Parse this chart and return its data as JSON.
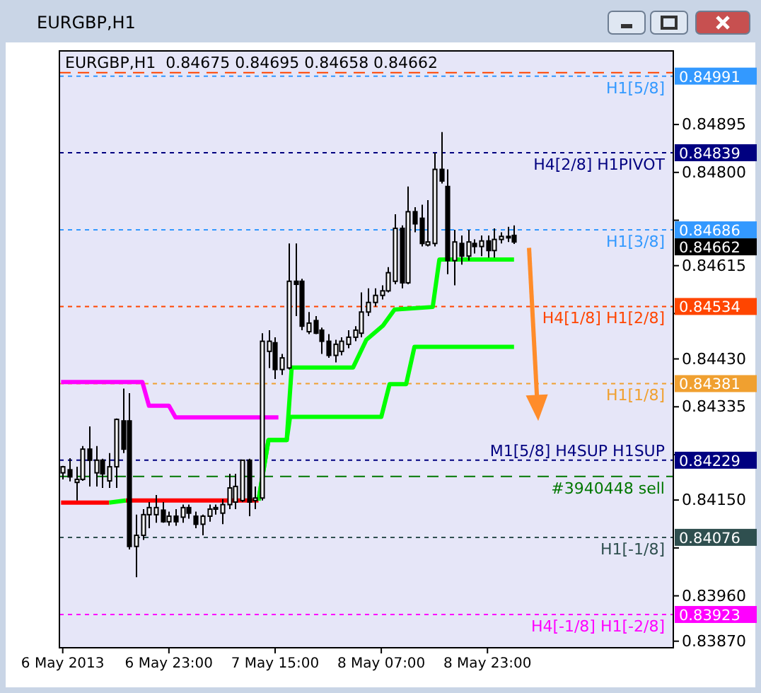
{
  "chart_data": {
    "type": "candlestick",
    "title": "EURGBP,H1",
    "subtitle": "EURGBP,H1  0.84675 0.84695 0.84658 0.84662",
    "x": [
      "2013-05-06T07:00",
      "2013-05-06T08:00",
      "2013-05-06T09:00",
      "2013-05-06T10:00",
      "2013-05-06T11:00",
      "2013-05-06T12:00",
      "2013-05-06T13:00",
      "2013-05-06T14:00",
      "2013-05-06T15:00",
      "2013-05-06T16:00",
      "2013-05-06T17:00",
      "2013-05-06T18:00",
      "2013-05-06T19:00",
      "2013-05-06T20:00",
      "2013-05-06T21:00",
      "2013-05-06T22:00",
      "2013-05-06T23:00",
      "2013-05-07T00:00",
      "2013-05-07T01:00",
      "2013-05-07T02:00",
      "2013-05-07T03:00",
      "2013-05-07T04:00",
      "2013-05-07T05:00",
      "2013-05-07T06:00",
      "2013-05-07T07:00",
      "2013-05-07T08:00",
      "2013-05-07T09:00",
      "2013-05-07T10:00",
      "2013-05-07T11:00",
      "2013-05-07T12:00",
      "2013-05-07T13:00",
      "2013-05-07T14:00",
      "2013-05-07T15:00",
      "2013-05-07T16:00",
      "2013-05-07T17:00",
      "2013-05-07T18:00",
      "2013-05-07T19:00",
      "2013-05-07T20:00",
      "2013-05-07T21:00",
      "2013-05-07T22:00",
      "2013-05-07T23:00",
      "2013-05-08T00:00",
      "2013-05-08T01:00",
      "2013-05-08T02:00",
      "2013-05-08T03:00",
      "2013-05-08T04:00",
      "2013-05-08T05:00",
      "2013-05-08T06:00",
      "2013-05-08T07:00",
      "2013-05-08T08:00",
      "2013-05-08T09:00",
      "2013-05-08T10:00",
      "2013-05-08T11:00",
      "2013-05-08T12:00",
      "2013-05-08T13:00",
      "2013-05-08T14:00",
      "2013-05-08T15:00",
      "2013-05-08T16:00",
      "2013-05-08T17:00",
      "2013-05-08T18:00",
      "2013-05-08T19:00",
      "2013-05-08T20:00",
      "2013-05-08T21:00",
      "2013-05-08T22:00",
      "2013-05-08T23:00",
      "2013-05-09T00:00",
      "2013-05-09T01:00",
      "2013-05-09T02:00",
      "2013-05-09T03:00"
    ],
    "ohlc": [
      [
        0.84204,
        0.84218,
        0.84191,
        0.84216
      ],
      [
        0.8421,
        0.84233,
        0.84187,
        0.84196
      ],
      [
        0.84185,
        0.84216,
        0.84149,
        0.84191
      ],
      [
        0.84191,
        0.84257,
        0.84188,
        0.84251
      ],
      [
        0.84251,
        0.84296,
        0.84177,
        0.84229
      ],
      [
        0.84204,
        0.84257,
        0.84177,
        0.84229
      ],
      [
        0.84229,
        0.84232,
        0.84174,
        0.84202
      ],
      [
        0.84188,
        0.84243,
        0.84174,
        0.84216
      ],
      [
        0.84216,
        0.84312,
        0.84174,
        0.8431
      ],
      [
        0.84307,
        0.84371,
        0.84243,
        0.84251
      ],
      [
        0.84307,
        0.84362,
        0.84052,
        0.84058
      ],
      [
        0.84058,
        0.84121,
        0.83997,
        0.8408
      ],
      [
        0.8408,
        0.84132,
        0.84071,
        0.84121
      ],
      [
        0.84121,
        0.84146,
        0.84094,
        0.84135
      ],
      [
        0.84121,
        0.8416,
        0.84105,
        0.84135
      ],
      [
        0.8413,
        0.84146,
        0.84105,
        0.84107
      ],
      [
        0.84107,
        0.84127,
        0.84099,
        0.84118
      ],
      [
        0.84118,
        0.84132,
        0.84099,
        0.84107
      ],
      [
        0.84116,
        0.84141,
        0.84105,
        0.84135
      ],
      [
        0.84135,
        0.84141,
        0.84113,
        0.84124
      ],
      [
        0.84118,
        0.84127,
        0.84094,
        0.84102
      ],
      [
        0.84102,
        0.84121,
        0.8408,
        0.84118
      ],
      [
        0.84118,
        0.84141,
        0.84107,
        0.84132
      ],
      [
        0.84132,
        0.84141,
        0.84121,
        0.84135
      ],
      [
        0.84124,
        0.84152,
        0.84102,
        0.84141
      ],
      [
        0.84141,
        0.84202,
        0.84132,
        0.84174
      ],
      [
        0.84146,
        0.84202,
        0.84132,
        0.84177
      ],
      [
        0.84149,
        0.84229,
        0.84146,
        0.84229
      ],
      [
        0.84229,
        0.84232,
        0.84118,
        0.84146
      ],
      [
        0.84149,
        0.84177,
        0.84132,
        0.84154
      ],
      [
        0.84154,
        0.84481,
        0.84149,
        0.84465
      ],
      [
        0.84445,
        0.84487,
        0.84412,
        0.84465
      ],
      [
        0.84462,
        0.84473,
        0.8439,
        0.84409
      ],
      [
        0.84409,
        0.8444,
        0.84398,
        0.84432
      ],
      [
        0.84412,
        0.84659,
        0.84409,
        0.84584
      ],
      [
        0.84584,
        0.84659,
        0.84515,
        0.84578
      ],
      [
        0.84584,
        0.84589,
        0.84487,
        0.84495
      ],
      [
        0.84484,
        0.84523,
        0.84479,
        0.84501
      ],
      [
        0.84506,
        0.84515,
        0.84479,
        0.84481
      ],
      [
        0.84487,
        0.84492,
        0.8444,
        0.84465
      ],
      [
        0.84465,
        0.84479,
        0.84432,
        0.84437
      ],
      [
        0.84437,
        0.84468,
        0.84423,
        0.84459
      ],
      [
        0.84445,
        0.84473,
        0.84437,
        0.84465
      ],
      [
        0.84459,
        0.84487,
        0.84451,
        0.84473
      ],
      [
        0.84473,
        0.84495,
        0.84465,
        0.84487
      ],
      [
        0.84481,
        0.84562,
        0.84473,
        0.84523
      ],
      [
        0.84523,
        0.8457,
        0.84515,
        0.84542
      ],
      [
        0.84542,
        0.8457,
        0.84534,
        0.84556
      ],
      [
        0.84556,
        0.84576,
        0.84548,
        0.84565
      ],
      [
        0.84565,
        0.84612,
        0.84562,
        0.84601
      ],
      [
        0.84584,
        0.84717,
        0.84578,
        0.84689
      ],
      [
        0.84689,
        0.84695,
        0.8457,
        0.84581
      ],
      [
        0.84581,
        0.84772,
        0.84578,
        0.84722
      ],
      [
        0.84722,
        0.84731,
        0.84681,
        0.84698
      ],
      [
        0.84709,
        0.84736,
        0.84653,
        0.84659
      ],
      [
        0.84656,
        0.84745,
        0.84653,
        0.84662
      ],
      [
        0.84659,
        0.84839,
        0.84653,
        0.84806
      ],
      [
        0.84806,
        0.8488,
        0.84778,
        0.84783
      ],
      [
        0.84772,
        0.84806,
        0.84598,
        0.84625
      ],
      [
        0.84625,
        0.84686,
        0.84576,
        0.84662
      ],
      [
        0.84659,
        0.84675,
        0.84617,
        0.84634
      ],
      [
        0.84634,
        0.84686,
        0.84625,
        0.84662
      ],
      [
        0.84659,
        0.84667,
        0.84639,
        0.84653
      ],
      [
        0.84653,
        0.84675,
        0.84634,
        0.84664
      ],
      [
        0.84664,
        0.84675,
        0.84631,
        0.84645
      ],
      [
        0.84645,
        0.84689,
        0.84631,
        0.84667
      ],
      [
        0.84667,
        0.84681,
        0.84659,
        0.84673
      ],
      [
        0.84673,
        0.84692,
        0.84662,
        0.84673
      ],
      [
        0.84675,
        0.84695,
        0.84658,
        0.84662
      ]
    ],
    "series": [
      {
        "type": "line",
        "color": "#ff00ff",
        "x": [
          "2013-05-06T06:45",
          "2013-05-06T19:00",
          "2013-05-06T20:00",
          "2013-05-06T23:00",
          "2013-05-07T00:00",
          "2013-05-07T15:30"
        ],
        "values": [
          0.84384,
          0.84384,
          0.84337,
          0.84337,
          0.84314,
          0.84314
        ]
      },
      {
        "type": "line",
        "color": "#ff0000",
        "x": [
          "2013-05-06T06:45",
          "2013-05-06T14:00",
          "2013-05-06T15:00",
          "2013-05-06T16:30",
          "2013-05-07T12:30"
        ],
        "values": [
          0.84145,
          0.84145,
          null,
          0.84149,
          0.84149
        ]
      },
      {
        "type": "line",
        "color": "#00ff00",
        "x": [
          "2013-05-06T14:00",
          "2013-05-06T16:30"
        ],
        "values": [
          0.84145,
          0.84149
        ]
      },
      {
        "type": "line",
        "color": "#00ff00",
        "x": [
          "2013-05-07T12:30",
          "2013-05-07T14:00",
          "2013-05-07T16:45",
          "2013-05-07T17:30",
          "2013-05-08T02:45",
          "2013-05-08T04:45",
          "2013-05-08T07:15",
          "2013-05-08T09:00",
          "2013-05-08T14:45",
          "2013-05-08T15:45",
          "2013-05-09T03:00"
        ],
        "values": [
          0.84149,
          0.84269,
          0.84269,
          0.84413,
          0.84413,
          0.84468,
          0.84496,
          0.84528,
          0.84533,
          0.84627,
          0.84627
        ]
      },
      {
        "type": "line",
        "color": "#00ff00",
        "x": [
          "2013-05-07T12:30",
          "2013-05-07T14:00",
          "2013-05-07T16:45",
          "2013-05-07T17:15",
          "2013-05-08T07:00",
          "2013-05-08T08:15",
          "2013-05-08T10:45",
          "2013-05-08T12:00",
          "2013-05-09T03:00"
        ],
        "values": [
          0.84149,
          0.84269,
          0.84269,
          0.84315,
          0.84315,
          0.8438,
          0.8438,
          0.84454,
          0.84454
        ]
      }
    ],
    "xlim": [
      "2013-05-06T06:30",
      "2013-05-10T03:00"
    ],
    "xticks": [
      {
        "value": "2013-05-06T07:00",
        "label": "6 May 2013"
      },
      {
        "value": "2013-05-06T23:00",
        "label": "6 May 23:00"
      },
      {
        "value": "2013-05-07T15:00",
        "label": "7 May 15:00"
      },
      {
        "value": "2013-05-08T07:00",
        "label": "8 May 07:00"
      },
      {
        "value": "2013-05-08T23:00",
        "label": "8 May 23:00"
      }
    ],
    "ylim": [
      0.83857,
      0.85041
    ],
    "yticks": [
      0.84895,
      {
        "value": 0.848,
        "label": "0.84800"
      },
      {
        "value": 0.84705,
        "label": null
      },
      0.84615,
      {
        "value": 0.8452,
        "label": null
      },
      {
        "value": 0.8443,
        "label": "0.84430"
      },
      0.84335,
      {
        "value": 0.8424,
        "label": null
      },
      {
        "value": 0.8415,
        "label": "0.84150"
      },
      {
        "value": 0.84055,
        "label": null
      },
      {
        "value": 0.8396,
        "label": "0.83960"
      },
      {
        "value": 0.8387,
        "label": "0.83870"
      }
    ],
    "y2lim": [
      0.83857,
      0.85041
    ],
    "y2ticks": [
      0.84991,
      0.84839,
      0.84686,
      0.84662,
      0.84534,
      0.84381,
      0.84229,
      0.84076,
      0.83923
    ],
    "ref_lines": [
      {
        "axis": "y",
        "value": 0.84998,
        "color": "#ff4500",
        "line_style": "dashed"
      },
      {
        "axis": "y",
        "value": 0.84991,
        "label": "H1[5/8]",
        "color": "#3399ff",
        "line_style": "dotted"
      },
      {
        "axis": "y",
        "value": 0.84839,
        "label": "H4[2/8] H1PIVOT",
        "color": "#000080",
        "line_style": "dotted"
      },
      {
        "axis": "y",
        "value": 0.84686,
        "label": "H1[3/8]",
        "color": "#3399ff",
        "line_style": "dotted"
      },
      {
        "axis": "y",
        "value": 0.84534,
        "label": "H4[1/8] H1[2/8]",
        "color": "#ff4500",
        "line_style": "dotted"
      },
      {
        "axis": "y",
        "value": 0.84381,
        "label": "H1[1/8]",
        "color": "#f0a030",
        "line_style": "dotted"
      },
      {
        "axis": "y",
        "value": 0.84229,
        "label": "M1[5/8] H4SUP H1SUP",
        "color": "#000080",
        "line_style": "dotted"
      },
      {
        "axis": "y",
        "value": 0.84197,
        "label": "#3940448 sell",
        "color": "#007700",
        "line_style": "dashed"
      },
      {
        "axis": "y",
        "value": 0.84076,
        "label": "H1[-1/8]",
        "color": "#2f4f4f",
        "line_style": "dotted"
      },
      {
        "axis": "y",
        "value": 0.83923,
        "label": "H4[-1/8] H1[-2/8]",
        "color": "#ff00ff",
        "line_style": "dotted"
      }
    ],
    "grid": false
  }
}
